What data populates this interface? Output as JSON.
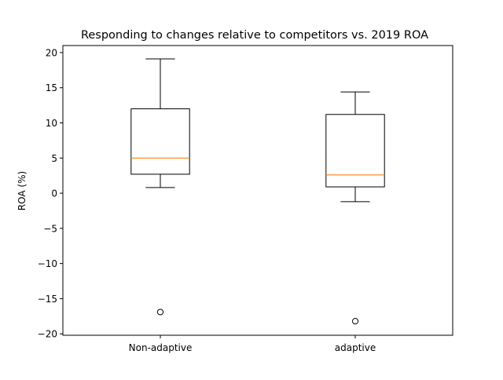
{
  "chart_data": {
    "type": "box",
    "title": "Responding to changes relative to competitors vs. 2019 ROA",
    "xlabel": "",
    "ylabel": "ROA (%)",
    "categories": [
      "Non-adaptive",
      "adaptive"
    ],
    "ylim": [
      -20.2,
      21.0
    ],
    "yticks": [
      -20,
      -15,
      -10,
      -5,
      0,
      5,
      10,
      15,
      20
    ],
    "ytick_labels": [
      "−20",
      "−15",
      "−10",
      "−5",
      "0",
      "5",
      "10",
      "15",
      "20"
    ],
    "boxes": [
      {
        "name": "Non-adaptive",
        "whisker_low": 0.8,
        "q1": 2.7,
        "median": 5.0,
        "q3": 12.0,
        "whisker_high": 19.1,
        "outliers": [
          -16.9
        ]
      },
      {
        "name": "adaptive",
        "whisker_low": -1.2,
        "q1": 0.9,
        "median": 2.6,
        "q3": 11.2,
        "whisker_high": 14.4,
        "outliers": [
          -18.2
        ]
      }
    ],
    "grid": false,
    "colors": {
      "box": "#000000",
      "median": "#ff7f0e",
      "outlier_edge": "#000000"
    }
  }
}
